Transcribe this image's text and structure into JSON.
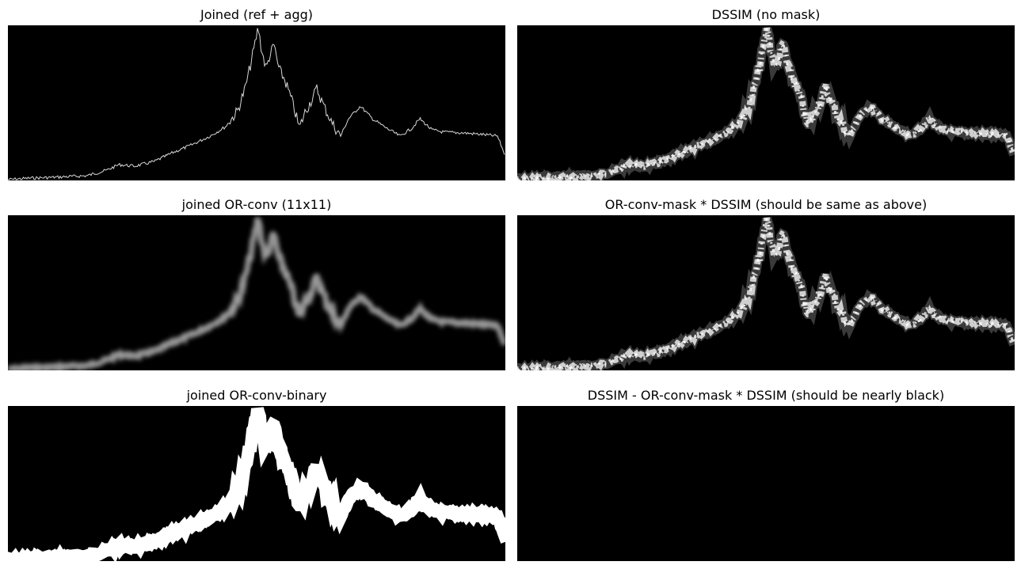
{
  "panels": [
    {
      "title": "Joined (ref + agg)",
      "style": "thin"
    },
    {
      "title": "DSSIM (no mask)",
      "style": "textured"
    },
    {
      "title": "joined OR-conv (11x11)",
      "style": "blur"
    },
    {
      "title": "OR-conv-mask * DSSIM  (should be same as above)",
      "style": "textured"
    },
    {
      "title": "joined OR-conv-binary",
      "style": "binary"
    },
    {
      "title": "DSSIM - OR-conv-mask * DSSIM (should be nearly black)",
      "style": "empty"
    }
  ],
  "colors": {
    "background": "#000000",
    "signal": "#ffffff",
    "page": "#ffffff"
  }
}
